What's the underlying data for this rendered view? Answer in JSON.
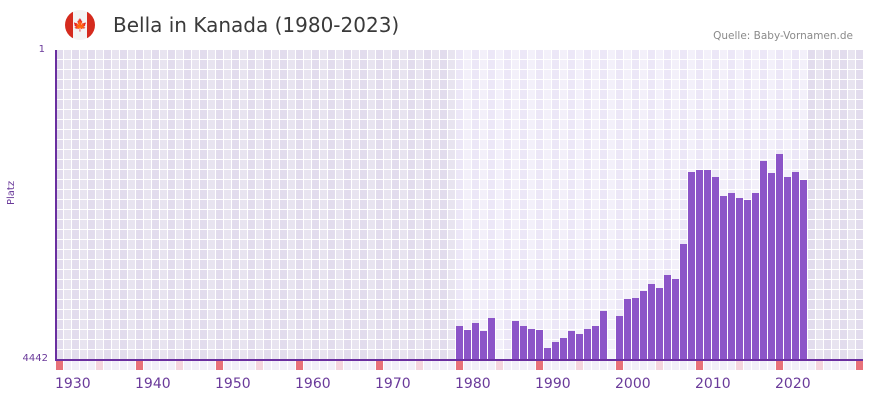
{
  "header": {
    "title": "Bella in Kanada (1980-2023)",
    "source": "Quelle: Baby-Vornamen.de",
    "flag_icon": "canada-flag-icon",
    "flag_glyph": "🍁"
  },
  "colors": {
    "bar": "#8c55c8",
    "axis": "#6a2fa0",
    "decade_marker": "#e8727a",
    "half_decade_marker": "#f5d5de",
    "grid_active": "#efebf8",
    "grid_inactive": "#e4e0ee",
    "text": "#6a3a9a"
  },
  "axes": {
    "y_top_label": "1",
    "y_bottom_label": "4442",
    "y_title": "Platz",
    "x_ticks": [
      "1930",
      "1940",
      "1950",
      "1960",
      "1970",
      "1980",
      "1990",
      "2000",
      "2010",
      "2020"
    ]
  },
  "chart_data": {
    "type": "bar",
    "title": "Bella in Kanada (1980-2023)",
    "xlabel": "",
    "ylabel": "Platz",
    "ylim": [
      4442,
      1
    ],
    "y_inverted": true,
    "x_range": [
      1930,
      2030
    ],
    "active_range": [
      1980,
      2023
    ],
    "x_ticks": [
      1930,
      1940,
      1950,
      1960,
      1970,
      1980,
      1990,
      2000,
      2010,
      2020
    ],
    "categories": [
      1980,
      1981,
      1982,
      1983,
      1984,
      1987,
      1988,
      1989,
      1990,
      1991,
      1992,
      1993,
      1994,
      1995,
      1996,
      1997,
      1998,
      2000,
      2001,
      2002,
      2003,
      2004,
      2005,
      2006,
      2007,
      2008,
      2009,
      2010,
      2011,
      2012,
      2013,
      2014,
      2015,
      2016,
      2017,
      2018,
      2019,
      2020,
      2021,
      2022,
      2023
    ],
    "values": [
      3955,
      4012,
      3912,
      4027,
      3840,
      3883,
      3955,
      3998,
      4012,
      4270,
      4184,
      4127,
      4027,
      4070,
      3998,
      3955,
      3740,
      3812,
      3568,
      3554,
      3454,
      3353,
      3411,
      3225,
      3282,
      2780,
      1749,
      1720,
      1720,
      1820,
      2093,
      2050,
      2121,
      2150,
      2050,
      1591,
      1763,
      1491,
      1820,
      1749,
      1863
    ],
    "missing_years": [
      1985,
      1986,
      1999
    ],
    "grid": true,
    "legend": null
  }
}
